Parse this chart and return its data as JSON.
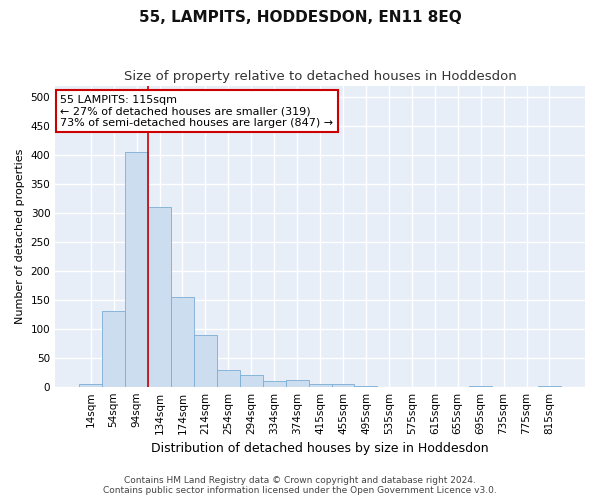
{
  "title": "55, LAMPITS, HODDESDON, EN11 8EQ",
  "subtitle": "Size of property relative to detached houses in Hoddesdon",
  "xlabel": "Distribution of detached houses by size in Hoddesdon",
  "ylabel": "Number of detached properties",
  "bar_color": "#ccddf0",
  "bar_edgecolor": "#7aadd4",
  "background_color": "#e8eef8",
  "grid_color": "#ffffff",
  "categories": [
    "14sqm",
    "54sqm",
    "94sqm",
    "134sqm",
    "174sqm",
    "214sqm",
    "254sqm",
    "294sqm",
    "334sqm",
    "374sqm",
    "415sqm",
    "455sqm",
    "495sqm",
    "535sqm",
    "575sqm",
    "615sqm",
    "655sqm",
    "695sqm",
    "735sqm",
    "775sqm",
    "815sqm"
  ],
  "values": [
    5,
    130,
    405,
    310,
    155,
    90,
    28,
    20,
    10,
    12,
    4,
    5,
    2,
    0,
    0,
    0,
    0,
    2,
    0,
    0,
    2
  ],
  "ylim": [
    0,
    520
  ],
  "yticks": [
    0,
    50,
    100,
    150,
    200,
    250,
    300,
    350,
    400,
    450,
    500
  ],
  "annotation_title": "55 LAMPITS: 115sqm",
  "annotation_line1": "← 27% of detached houses are smaller (319)",
  "annotation_line2": "73% of semi-detached houses are larger (847) →",
  "vline_x": 2.5,
  "vline_color": "#cc0000",
  "annotation_box_color": "#ffffff",
  "annotation_box_edgecolor": "#cc0000",
  "footer_line1": "Contains HM Land Registry data © Crown copyright and database right 2024.",
  "footer_line2": "Contains public sector information licensed under the Open Government Licence v3.0.",
  "title_fontsize": 11,
  "subtitle_fontsize": 9.5,
  "xlabel_fontsize": 9,
  "ylabel_fontsize": 8,
  "tick_fontsize": 7.5,
  "annotation_fontsize": 8,
  "footer_fontsize": 6.5,
  "fig_facecolor": "#ffffff"
}
